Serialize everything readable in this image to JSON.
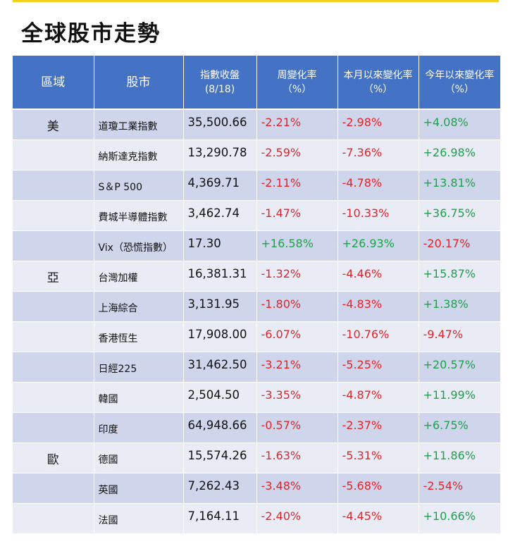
{
  "title": "全球股市走勢",
  "headers": {
    "region": "區域",
    "stock": "股市",
    "close_line1": "指數收盤",
    "close_line2": "(8/18)",
    "week_line1": "周變化率",
    "week_line2": "（%）",
    "month_line1": "本月以來變化率",
    "month_line2": "（%）",
    "ytd_line1": "今年以來變化率",
    "ytd_line2": "（%）"
  },
  "colors": {
    "header_bg": "#4472c4",
    "row_dark": "#cfd5ea",
    "row_light": "#e9ebf5",
    "negative": "#e1252a",
    "positive": "#1aa34a",
    "top_line": "#f2d21f"
  },
  "rows": [
    {
      "region": "美",
      "stock": "道瓊工業指數",
      "close": "35,500.66",
      "week": "-2.21%",
      "month": "-2.98%",
      "ytd": "+4.08%"
    },
    {
      "region": "",
      "stock": "納斯達克指數",
      "close": "13,290.78",
      "week": "-2.59%",
      "month": "-7.36%",
      "ytd": "+26.98%"
    },
    {
      "region": "",
      "stock": "S＆P 500",
      "close": "4,369.71",
      "week": "-2.11%",
      "month": "-4.78%",
      "ytd": "+13.81%"
    },
    {
      "region": "",
      "stock": "費城半導體指數",
      "close": "3,462.74",
      "week": "-1.47%",
      "month": "-10.33%",
      "ytd": "+36.75%"
    },
    {
      "region": "",
      "stock": "Vix（恐慌指數）",
      "close": "17.30",
      "week": "+16.58%",
      "month": "+26.93%",
      "ytd": "-20.17%"
    },
    {
      "region": "亞",
      "stock": "台灣加權",
      "close": "16,381.31",
      "week": "-1.32%",
      "month": "-4.46%",
      "ytd": "+15.87%"
    },
    {
      "region": "",
      "stock": "上海綜合",
      "close": "3,131.95",
      "week": "-1.80%",
      "month": "-4.83%",
      "ytd": "+1.38%"
    },
    {
      "region": "",
      "stock": "香港恆生",
      "close": "17,908.00",
      "week": "-6.07%",
      "month": "-10.76%",
      "ytd": "-9.47%"
    },
    {
      "region": "",
      "stock": "日經225",
      "close": "31,462.50",
      "week": "-3.21%",
      "month": "-5.25%",
      "ytd": "+20.57%"
    },
    {
      "region": "",
      "stock": "韓國",
      "close": "2,504.50",
      "week": "-3.35%",
      "month": "-4.87%",
      "ytd": "+11.99%"
    },
    {
      "region": "",
      "stock": "印度",
      "close": "64,948.66",
      "week": "-0.57%",
      "month": "-2.37%",
      "ytd": "+6.75%"
    },
    {
      "region": "歐",
      "stock": "德國",
      "close": "15,574.26",
      "week": "-1.63%",
      "month": "-5.31%",
      "ytd": "+11.86%"
    },
    {
      "region": "",
      "stock": "英國",
      "close": "7,262.43",
      "week": "-3.48%",
      "month": "-5.68%",
      "ytd": "-2.54%"
    },
    {
      "region": "",
      "stock": "法國",
      "close": "7,164.11",
      "week": "-2.40%",
      "month": "-4.45%",
      "ytd": "+10.66%"
    }
  ]
}
